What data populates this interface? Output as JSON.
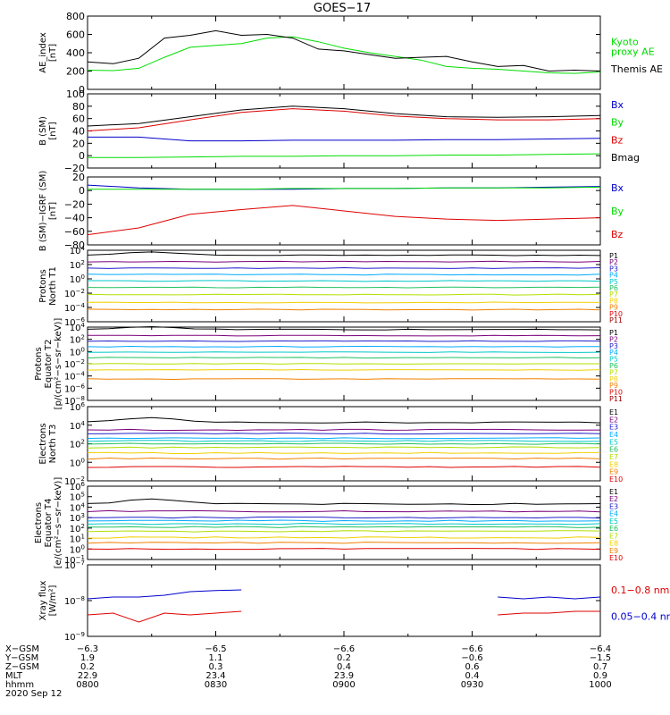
{
  "title": "GOES−17",
  "colors": {
    "black": "#000000",
    "green": "#00dd00",
    "blue": "#0000cc",
    "red": "#dd0000",
    "P": [
      "#000000",
      "#7a007a",
      "#2020cc",
      "#00aaff",
      "#00c8c8",
      "#20c060",
      "#b0e000",
      "#f0d000",
      "#f08000",
      "#e00000",
      "#a00000"
    ],
    "E": [
      "#000000",
      "#7a007a",
      "#2020cc",
      "#00aaff",
      "#00c8c8",
      "#20c060",
      "#b0e000",
      "#f0d000",
      "#f08000",
      "#e00000",
      "#a00000"
    ]
  },
  "chart_data": [
    {
      "type": "line",
      "ylabel": "AE_index\n[nT]",
      "ylim": [
        0,
        800
      ],
      "yticks": [
        "0",
        "200",
        "400",
        "600",
        "800"
      ],
      "legend": [
        "Kyoto\nproxy AE",
        "Themis AE"
      ],
      "x_hours": [
        8.0,
        8.1,
        8.2,
        8.3,
        8.4,
        8.5,
        8.6,
        8.7,
        8.8,
        8.9,
        9.0,
        9.1,
        9.2,
        9.3,
        9.4,
        9.5,
        9.6,
        9.7,
        9.8,
        9.9,
        10.0
      ],
      "series": [
        {
          "name": "Kyoto proxy AE",
          "color": "green",
          "values": [
            210,
            205,
            230,
            350,
            460,
            480,
            500,
            560,
            575,
            520,
            450,
            400,
            360,
            320,
            250,
            230,
            220,
            200,
            180,
            175,
            190
          ]
        },
        {
          "name": "Themis AE",
          "color": "black",
          "values": [
            300,
            280,
            340,
            560,
            590,
            640,
            590,
            600,
            560,
            440,
            420,
            380,
            340,
            350,
            360,
            300,
            250,
            260,
            200,
            210,
            200
          ]
        }
      ]
    },
    {
      "type": "line",
      "ylabel": "B (SM)\n[nT]",
      "ylim": [
        -20,
        100
      ],
      "yticks": [
        "−20",
        "0",
        "20",
        "40",
        "60",
        "80",
        "100"
      ],
      "legend": [
        "Bx",
        "By",
        "Bz",
        "Bmag"
      ],
      "x_hours": [
        8.0,
        8.2,
        8.4,
        8.6,
        8.8,
        9.0,
        9.2,
        9.4,
        9.6,
        9.8,
        10.0
      ],
      "series": [
        {
          "name": "Bx",
          "color": "blue",
          "values": [
            30,
            30,
            24,
            24,
            25,
            25,
            25,
            26,
            26,
            27,
            28
          ]
        },
        {
          "name": "By",
          "color": "green",
          "values": [
            -3,
            -3,
            -2,
            -1,
            -1,
            0,
            0,
            1,
            1,
            2,
            3
          ]
        },
        {
          "name": "Bz",
          "color": "red",
          "values": [
            40,
            45,
            58,
            70,
            76,
            72,
            64,
            60,
            58,
            58,
            60
          ]
        },
        {
          "name": "Bmag",
          "color": "black",
          "values": [
            48,
            52,
            63,
            74,
            80,
            76,
            68,
            63,
            62,
            63,
            65
          ]
        }
      ]
    },
    {
      "type": "line",
      "ylabel": "B (SM)−IGRF (SM)\n[nT]",
      "ylim": [
        -80,
        20
      ],
      "yticks": [
        "−80",
        "−60",
        "−40",
        "−20",
        "0",
        "20"
      ],
      "legend": [
        "Bx",
        "By",
        "Bz"
      ],
      "x_hours": [
        8.0,
        8.2,
        8.4,
        8.6,
        8.8,
        9.0,
        9.2,
        9.4,
        9.6,
        9.8,
        10.0
      ],
      "series": [
        {
          "name": "Bx",
          "color": "blue",
          "values": [
            8,
            4,
            2,
            2,
            2,
            3,
            3,
            4,
            4,
            5,
            6
          ]
        },
        {
          "name": "By",
          "color": "green",
          "values": [
            2,
            2,
            2,
            2,
            3,
            3,
            3,
            4,
            4,
            4,
            5
          ]
        },
        {
          "name": "Bz",
          "color": "red",
          "values": [
            -65,
            -55,
            -35,
            -28,
            -22,
            -30,
            -38,
            -42,
            -44,
            -42,
            -40
          ]
        }
      ]
    },
    {
      "type": "line",
      "ylabel": "Protons\nNorth T1",
      "ylog": [
        -6,
        4
      ],
      "yticks_exp": [
        -6,
        -4,
        -2,
        0,
        2,
        4
      ],
      "legend": [
        "P1",
        "P2",
        "P3",
        "P4",
        "P5",
        "P6",
        "P7",
        "P8",
        "P9",
        "P10",
        "P11"
      ],
      "levels_log": [
        3.3,
        2.4,
        1.5,
        0.6,
        -0.3,
        -1.2,
        -2.2,
        -3.3,
        -4.3,
        null,
        null
      ]
    },
    {
      "type": "line",
      "ylabel": "Protons\nEquator T2\n[p/(cm²−s−sr−keV)]",
      "ylog": [
        -8,
        4
      ],
      "yticks_exp": [
        -8,
        -6,
        -4,
        -2,
        0,
        2,
        4
      ],
      "legend": [
        "P1",
        "P2",
        "P3",
        "P4",
        "P5",
        "P6",
        "P7",
        "P8",
        "P9",
        "P10",
        "P11"
      ],
      "levels_log": [
        3.6,
        2.6,
        1.7,
        0.8,
        -0.1,
        -1.0,
        -2.0,
        -3.0,
        -4.5,
        null,
        null
      ]
    },
    {
      "type": "line",
      "ylabel": "Electrons\nNorth T3",
      "ylog": [
        -2,
        6
      ],
      "yticks_exp": [
        -2,
        0,
        2,
        4,
        6
      ],
      "legend": [
        "E1",
        "E2",
        "E3",
        "E4",
        "E5",
        "E6",
        "E7",
        "E8",
        "E9",
        "E10"
      ],
      "levels_log": [
        4.3,
        3.5,
        3.1,
        2.6,
        2.3,
        2.0,
        1.6,
        1.0,
        0.4,
        -0.5
      ]
    },
    {
      "type": "line",
      "ylabel": "Electrons\nEquator T4\n[e/(cm²−s−sr−keV)]",
      "ylog": [
        -1,
        6
      ],
      "yticks_exp": [
        -1,
        0,
        1,
        2,
        3,
        4,
        5,
        6
      ],
      "legend": [
        "E1",
        "E2",
        "E3",
        "E4",
        "E5",
        "E6",
        "E7",
        "E8",
        "E9",
        "E10"
      ],
      "levels_log": [
        4.3,
        3.6,
        3.0,
        2.7,
        2.4,
        2.1,
        1.7,
        1.1,
        0.6,
        0.0
      ]
    },
    {
      "type": "line",
      "ylabel": "Xray flux\n[W/m²]",
      "ylog": [
        -9,
        -7
      ],
      "yticks_exp": [
        -9,
        -8,
        -7
      ],
      "legend": [
        "0.1−0.8 nm",
        "0.05−0.4 nm"
      ],
      "series": [
        {
          "name": "0.1−0.8 nm",
          "color": "red",
          "x_hours": [
            8.0,
            8.1,
            8.2,
            8.3,
            8.4,
            8.5,
            8.6,
            null,
            9.6,
            9.7,
            9.8,
            9.9,
            10.0
          ],
          "values": [
            -8.4,
            -8.35,
            -8.6,
            -8.35,
            -8.4,
            -8.35,
            -8.3,
            null,
            -8.4,
            -8.35,
            -8.35,
            -8.3,
            -8.3
          ]
        },
        {
          "name": "0.05−0.4 nm",
          "color": "blue",
          "x_hours": [
            8.0,
            8.1,
            8.2,
            8.3,
            8.4,
            8.5,
            8.6,
            null,
            9.6,
            9.7,
            9.8,
            9.9,
            10.0
          ],
          "values": [
            -7.95,
            -7.9,
            -7.9,
            -7.85,
            -7.75,
            -7.72,
            -7.7,
            null,
            -7.9,
            -7.95,
            -7.9,
            -7.95,
            -7.9
          ]
        }
      ]
    }
  ],
  "x_axis": {
    "rows": [
      {
        "label": "X−GSM",
        "values": [
          "−6.3",
          "−6.5",
          "−6.6",
          "−6.6",
          "−6.4"
        ]
      },
      {
        "label": "Y−GSM",
        "values": [
          "1.9",
          "1.1",
          "0.2",
          "−0.6",
          "−1.5"
        ]
      },
      {
        "label": "Z−GSM",
        "values": [
          "0.2",
          "0.3",
          "0.4",
          "0.6",
          "0.7"
        ]
      },
      {
        "label": "MLT",
        "values": [
          "22.9",
          "23.4",
          "23.9",
          "0.4",
          "0.9"
        ]
      },
      {
        "label": "hhmm",
        "values": [
          "0800",
          "0830",
          "0900",
          "0930",
          "1000"
        ]
      }
    ],
    "date": "2020 Sep 12"
  }
}
